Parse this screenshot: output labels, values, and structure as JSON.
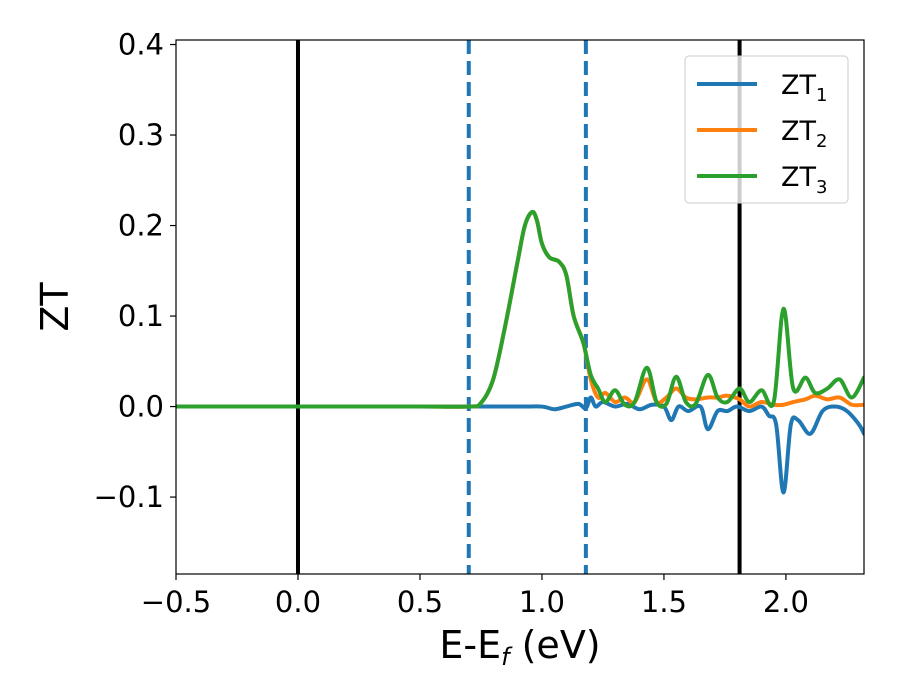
{
  "chart_data": {
    "type": "line",
    "xlabel": {
      "base": "E-E",
      "sub": "f",
      "suffix": " (eV)"
    },
    "ylabel": "ZT",
    "xlim": [
      -0.5,
      2.32
    ],
    "ylim": [
      -0.185,
      0.405
    ],
    "xticks": [
      -0.5,
      0.0,
      0.5,
      1.0,
      1.5,
      2.0
    ],
    "xtick_labels": [
      "−0.5",
      "0.0",
      "0.5",
      "1.0",
      "1.5",
      "2.0"
    ],
    "yticks": [
      -0.1,
      0.0,
      0.1,
      0.2,
      0.3,
      0.4
    ],
    "ytick_labels": [
      "−0.1",
      "0.0",
      "0.1",
      "0.2",
      "0.3",
      "0.4"
    ],
    "grid": false,
    "legend_position": "top-right",
    "vlines": [
      {
        "x": 0.0,
        "style": "solid",
        "color": "#000000"
      },
      {
        "x": 1.81,
        "style": "solid",
        "color": "#000000"
      },
      {
        "x": 0.7,
        "style": "dashed",
        "color": "#1f77b4"
      },
      {
        "x": 1.18,
        "style": "dashed",
        "color": "#1f77b4"
      }
    ],
    "series": [
      {
        "name": "ZT",
        "sub": "1",
        "color": "#1f77b4",
        "x": [
          -0.5,
          0.0,
          0.5,
          0.9,
          1.0,
          1.05,
          1.1,
          1.15,
          1.18,
          1.2,
          1.22,
          1.25,
          1.3,
          1.35,
          1.4,
          1.45,
          1.5,
          1.53,
          1.56,
          1.6,
          1.65,
          1.68,
          1.72,
          1.76,
          1.8,
          1.85,
          1.9,
          1.93,
          1.96,
          1.99,
          2.02,
          2.05,
          2.1,
          2.15,
          2.2,
          2.25,
          2.3,
          2.32
        ],
        "y": [
          0.0,
          0.0,
          0.0,
          0.0,
          0.0,
          -0.003,
          0.0,
          0.003,
          -0.002,
          0.01,
          0.0,
          0.005,
          0.0,
          0.003,
          -0.003,
          0.002,
          0.0,
          -0.015,
          0.0,
          -0.005,
          0.0,
          -0.025,
          -0.005,
          -0.005,
          0.0,
          -0.005,
          0.0,
          -0.01,
          -0.02,
          -0.095,
          -0.02,
          -0.015,
          -0.03,
          -0.005,
          0.0,
          -0.005,
          -0.02,
          -0.03
        ]
      },
      {
        "name": "ZT",
        "sub": "2",
        "color": "#ff7f0e",
        "x": [
          -0.5,
          0.0,
          0.5,
          0.7,
          0.75,
          0.8,
          0.85,
          0.9,
          0.93,
          0.96,
          0.98,
          1.0,
          1.03,
          1.07,
          1.1,
          1.13,
          1.17,
          1.2,
          1.23,
          1.26,
          1.3,
          1.34,
          1.38,
          1.43,
          1.47,
          1.51,
          1.55,
          1.59,
          1.63,
          1.68,
          1.72,
          1.76,
          1.81,
          1.85,
          1.9,
          1.95,
          1.99,
          2.03,
          2.08,
          2.12,
          2.17,
          2.22,
          2.27,
          2.32
        ],
        "y": [
          0.0,
          0.0,
          0.0,
          0.0,
          0.004,
          0.03,
          0.09,
          0.16,
          0.2,
          0.215,
          0.205,
          0.18,
          0.165,
          0.16,
          0.145,
          0.1,
          0.07,
          0.03,
          0.01,
          0.015,
          0.005,
          0.01,
          0.005,
          0.03,
          0.005,
          0.01,
          0.02,
          0.01,
          0.008,
          0.01,
          0.01,
          0.012,
          0.008,
          0.0,
          0.005,
          0.002,
          0.002,
          0.005,
          0.008,
          0.012,
          0.008,
          0.01,
          0.002,
          0.002
        ]
      },
      {
        "name": "ZT",
        "sub": "3",
        "color": "#2ca02c",
        "x": [
          -0.5,
          0.0,
          0.5,
          0.7,
          0.75,
          0.8,
          0.85,
          0.9,
          0.93,
          0.96,
          0.98,
          1.0,
          1.03,
          1.07,
          1.1,
          1.13,
          1.17,
          1.2,
          1.23,
          1.26,
          1.3,
          1.34,
          1.38,
          1.43,
          1.47,
          1.51,
          1.55,
          1.59,
          1.63,
          1.68,
          1.72,
          1.76,
          1.81,
          1.85,
          1.9,
          1.95,
          1.99,
          2.03,
          2.08,
          2.12,
          2.17,
          2.22,
          2.27,
          2.32
        ],
        "y": [
          0.0,
          0.0,
          0.0,
          0.0,
          0.004,
          0.03,
          0.09,
          0.16,
          0.2,
          0.215,
          0.205,
          0.18,
          0.165,
          0.16,
          0.145,
          0.1,
          0.07,
          0.035,
          0.02,
          0.005,
          0.018,
          0.002,
          0.005,
          0.043,
          0.005,
          0.003,
          0.033,
          0.005,
          0.003,
          0.035,
          0.01,
          0.005,
          0.02,
          0.005,
          0.018,
          0.005,
          0.108,
          0.02,
          0.032,
          0.015,
          0.02,
          0.03,
          0.01,
          0.032
        ]
      }
    ]
  }
}
